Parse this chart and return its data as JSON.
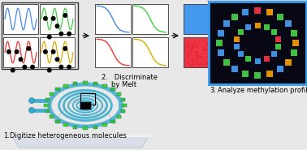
{
  "bg_color": "#e8e8e8",
  "colors": {
    "blue": "#4488ee",
    "green": "#44cc44",
    "red": "#ee3333",
    "orange": "#ee9900",
    "teal": "#33aacc",
    "dark_bg": "#0a0a14"
  },
  "label1": "1.",
  "label1_text": "Digitize heterogeneous molecules",
  "label2": "2.",
  "label2_text1": "Discriminate",
  "label2_text2": "by Melt",
  "label3": "3.",
  "label3_text": "Analyze methylation profile",
  "font_size": 6.0,
  "sq_colors": [
    "#4499ee",
    "#44cc44",
    "#ee3344",
    "#ee9900"
  ]
}
